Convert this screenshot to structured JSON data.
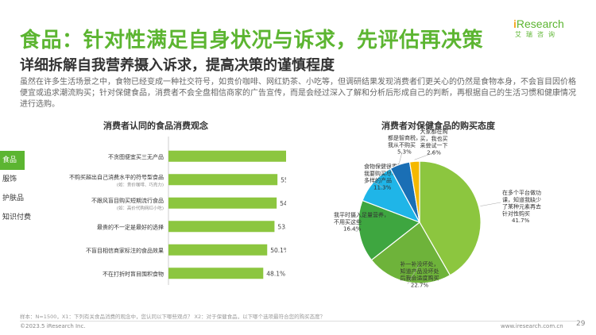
{
  "header": {
    "title": "食品：针对性满足自身状况与诉求，先评估再决策",
    "subtitle": "详细拆解自我营养摄入诉求，提高决策的谨慎程度",
    "description": "虽然在许多生活场景之中，食物已经变成一种社交符号，如贵价咖啡、网红奶茶、小吃等，但调研结果发现消费者们更关心的仍然是食物本身，不会盲目因价格便宜或追求潮流购买；针对保健食品，消费者不会全盘相信商家的广告宣传，而是会经过深入了解和分析后形成自己的判断，再根据自己的生活习惯和健康情况进行选购。"
  },
  "logo": {
    "brand_prefix": "i",
    "brand_rest": "Research",
    "cn": "艾瑞咨询"
  },
  "side_tabs": [
    {
      "label": "食品",
      "active": true
    },
    {
      "label": "服饰",
      "active": false
    },
    {
      "label": "护肤品",
      "active": false
    },
    {
      "label": "知识付费",
      "active": false
    }
  ],
  "colors": {
    "accent": "#5cb531",
    "bar": "#8cc63f"
  },
  "chart_data": [
    {
      "type": "bar",
      "orientation": "horizontal",
      "title": "消费者认同的食品消费观念",
      "categories": [
        {
          "label": "不贪图便宜买三无产品",
          "sub": ""
        },
        {
          "label": "不购买超出自己消费水平的符号型食品",
          "sub": "(如：贵价咖啡、巧克力)"
        },
        {
          "label": "不跟风盲目购买短期流行食品",
          "sub": "(如：高价代购网红小吃)"
        },
        {
          "label": "最贵的不一定是最好的选择",
          "sub": ""
        },
        {
          "label": "不盲目相信商家标注的食品效果",
          "sub": ""
        },
        {
          "label": "不在打折时盲目囤积食物",
          "sub": ""
        }
      ],
      "values": [
        63.0,
        55.3,
        54.9,
        53.8,
        50.1,
        48.1
      ],
      "value_labels": [
        "63.0%",
        "55.3%",
        "54.9%",
        "53.8%",
        "50.1%",
        "48.1%"
      ],
      "xlim": [
        0,
        100
      ]
    },
    {
      "type": "pie",
      "title": "消费者对保健食品的购买态度",
      "slices": [
        {
          "lines": [
            "在多个平台做功",
            "课，知道我缺少",
            "了某种元素再去",
            "针对性购买"
          ],
          "value": 41.7,
          "value_label": "41.7%",
          "color": "#8cc63f"
        },
        {
          "lines": [
            "补一补没坏处，",
            "知道产品没坏处",
            "后我会适度购买"
          ],
          "value": 22.7,
          "value_label": "22.7%",
          "color": "#6eb33a"
        },
        {
          "lines": [
            "我平时摄入足量营养，",
            "不用买这些"
          ],
          "value": 16.4,
          "value_label": "16.4%",
          "color": "#3ea640"
        },
        {
          "lines": [
            "食物保健很重要，",
            "我要购买尽可能",
            "多样的产品"
          ],
          "value": 11.3,
          "value_label": "11.3%",
          "color": "#1fb5e8"
        },
        {
          "lines": [
            "都是智商税，",
            "我从不购买"
          ],
          "value": 5.3,
          "value_label": "5.3%",
          "color": "#1a6fb5"
        },
        {
          "lines": [
            "大家都在购",
            "买，我也买",
            "来尝试一下"
          ],
          "value": 2.6,
          "value_label": "2.6%",
          "color": "#f5b800"
        }
      ]
    }
  ],
  "footer": {
    "footnote": "样本：N=1500，X1：下列有关食品消费的观念中，您认同以下哪些观点？  X2：对于保健食品，以下哪个选项最符合您的购买态度？",
    "copyright": "©2023.5 iResearch Inc.",
    "website": "www.iresearch.com.cn",
    "page": "29"
  }
}
